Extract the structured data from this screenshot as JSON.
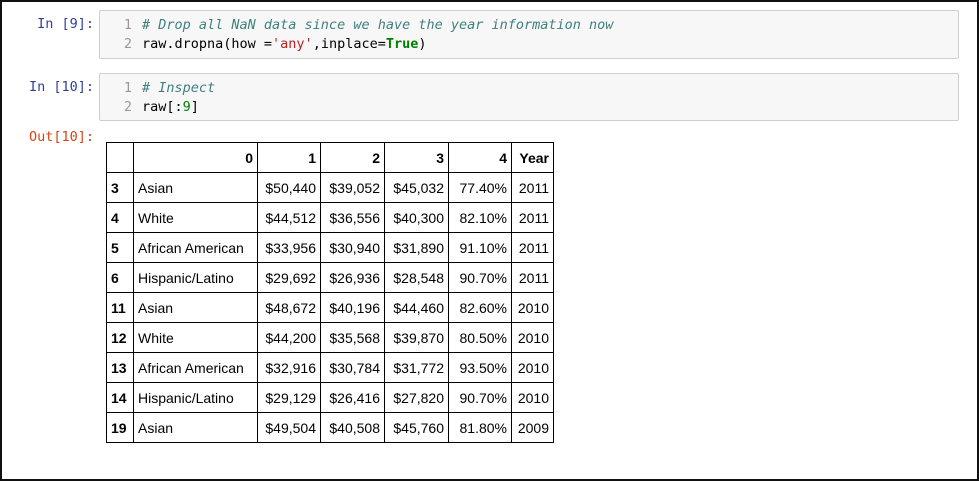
{
  "cells": [
    {
      "prompt": "In [9]:",
      "lines": [
        {
          "number": 1,
          "tokens": [
            {
              "kind": "comment",
              "text": "# Drop all NaN data since we have the year information now"
            }
          ]
        },
        {
          "number": 2,
          "tokens": [
            {
              "kind": "plain",
              "text": "raw.dropna(how ="
            },
            {
              "kind": "string",
              "text": "'any'"
            },
            {
              "kind": "plain",
              "text": ",inplace="
            },
            {
              "kind": "keyword",
              "text": "True"
            },
            {
              "kind": "plain",
              "text": ")"
            }
          ]
        }
      ]
    },
    {
      "prompt": "In [10]:",
      "lines": [
        {
          "number": 1,
          "tokens": [
            {
              "kind": "comment",
              "text": "# Inspect"
            }
          ]
        },
        {
          "number": 2,
          "tokens": [
            {
              "kind": "plain",
              "text": "raw[:"
            },
            {
              "kind": "number",
              "text": "9"
            },
            {
              "kind": "plain",
              "text": "]"
            }
          ]
        }
      ]
    }
  ],
  "output": {
    "prompt": "Out[10]:",
    "table": {
      "columns": [
        "0",
        "1",
        "2",
        "3",
        "4",
        "Year"
      ],
      "rows": [
        {
          "index": "3",
          "cells": [
            "Asian",
            "$50,440",
            "$39,052",
            "$45,032",
            "77.40%",
            "2011"
          ]
        },
        {
          "index": "4",
          "cells": [
            "White",
            "$44,512",
            "$36,556",
            "$40,300",
            "82.10%",
            "2011"
          ]
        },
        {
          "index": "5",
          "cells": [
            "African American",
            "$33,956",
            "$30,940",
            "$31,890",
            "91.10%",
            "2011"
          ]
        },
        {
          "index": "6",
          "cells": [
            "Hispanic/Latino",
            "$29,692",
            "$26,936",
            "$28,548",
            "90.70%",
            "2011"
          ]
        },
        {
          "index": "11",
          "cells": [
            "Asian",
            "$48,672",
            "$40,196",
            "$44,460",
            "82.60%",
            "2010"
          ]
        },
        {
          "index": "12",
          "cells": [
            "White",
            "$44,200",
            "$35,568",
            "$39,870",
            "80.50%",
            "2010"
          ]
        },
        {
          "index": "13",
          "cells": [
            "African American",
            "$32,916",
            "$30,784",
            "$31,772",
            "93.50%",
            "2010"
          ]
        },
        {
          "index": "14",
          "cells": [
            "Hispanic/Latino",
            "$29,129",
            "$26,416",
            "$27,820",
            "90.70%",
            "2010"
          ]
        },
        {
          "index": "19",
          "cells": [
            "Asian",
            "$49,504",
            "$40,508",
            "$45,760",
            "81.80%",
            "2009"
          ]
        }
      ]
    }
  }
}
